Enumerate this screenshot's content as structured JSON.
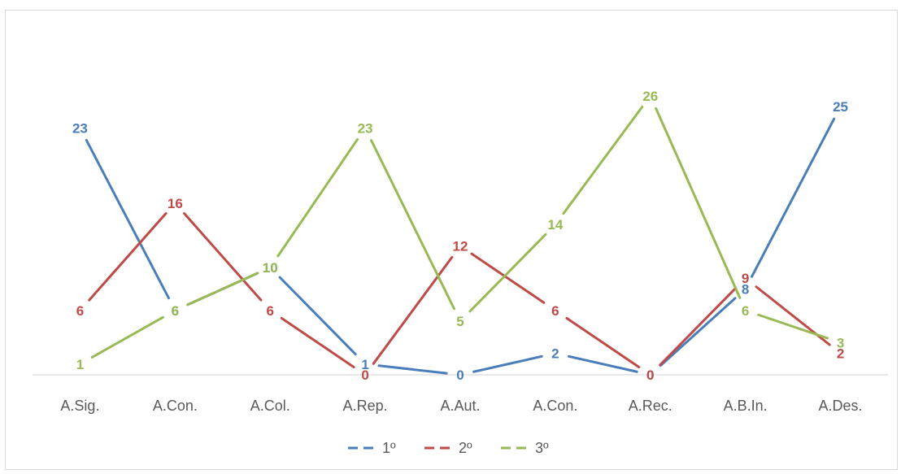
{
  "chart_data": {
    "type": "line",
    "title": "",
    "xlabel": "",
    "ylabel": "",
    "categories": [
      "A.Sig.",
      "A.Con.",
      "A.Col.",
      "A.Rep.",
      "A.Aut.",
      "A.Con.",
      "A.Rec.",
      "A.B.In.",
      "A.Des."
    ],
    "ylim": [
      0,
      28
    ],
    "grid": false,
    "legend_position": "bottom",
    "line_style": "dashed-legend",
    "series": [
      {
        "name": "1º",
        "color": "#4a7ebb",
        "values": [
          23,
          6,
          10,
          1,
          0,
          2,
          0,
          8,
          25
        ]
      },
      {
        "name": "2º",
        "color": "#be4b48",
        "values": [
          6,
          16,
          6,
          0,
          12,
          6,
          0,
          9,
          2
        ]
      },
      {
        "name": "3º",
        "color": "#98b954",
        "values": [
          1,
          6,
          10,
          23,
          5,
          14,
          26,
          6,
          3
        ]
      }
    ]
  }
}
